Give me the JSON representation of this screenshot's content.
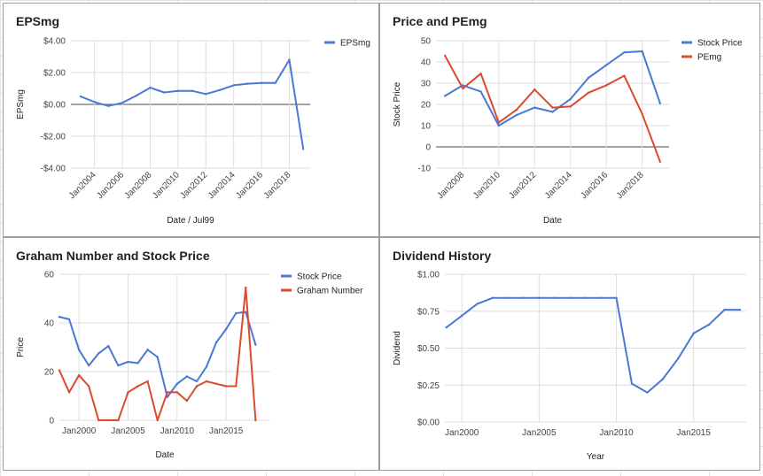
{
  "chart_data": [
    {
      "type": "line",
      "title": "EPSmg",
      "xlabel": "Date / Jul99",
      "ylabel": "EPSmg",
      "x_kind": "year",
      "xlim": [
        2002.3,
        2019.5
      ],
      "ylim": [
        -4,
        4
      ],
      "y_ticks": [
        -4,
        -2,
        0,
        2,
        4
      ],
      "y_tick_labels": [
        "-$4.00",
        "-$2.00",
        "$0.00",
        "$2.00",
        "$4.00"
      ],
      "x_ticks": [
        2004,
        2006,
        2008,
        2010,
        2012,
        2014,
        2016,
        2018
      ],
      "x_tick_labels": [
        "Jan2004",
        "Jan2006",
        "Jan2008",
        "Jan2010",
        "Jan2012",
        "Jan2014",
        "Jan2016",
        "Jan2018"
      ],
      "x_labels_rotated": true,
      "zero_line": true,
      "legend_position": "right",
      "grid": true,
      "series": [
        {
          "name": "EPSmg",
          "color": "#4a78d6",
          "x": [
            2003,
            2004,
            2005,
            2006,
            2007,
            2008,
            2009,
            2010,
            2011,
            2012,
            2013,
            2014,
            2015,
            2016,
            2017,
            2018,
            2019
          ],
          "y": [
            0.5,
            0.15,
            -0.1,
            0.1,
            0.55,
            1.05,
            0.75,
            0.85,
            0.85,
            0.65,
            0.9,
            1.2,
            1.3,
            1.35,
            1.35,
            2.8,
            -2.8
          ]
        }
      ]
    },
    {
      "type": "line",
      "title": "Price and PEmg",
      "xlabel": "Date",
      "ylabel": "Stock Price",
      "x_kind": "year",
      "xlim": [
        2006.5,
        2019.5
      ],
      "ylim": [
        -10,
        50
      ],
      "y_ticks": [
        -10,
        0,
        10,
        20,
        30,
        40,
        50
      ],
      "y_tick_labels": [
        "-10",
        "0",
        "10",
        "20",
        "30",
        "40",
        "50"
      ],
      "x_ticks": [
        2008,
        2010,
        2012,
        2014,
        2016,
        2018
      ],
      "x_tick_labels": [
        "Jan2008",
        "Jan2010",
        "Jan2012",
        "Jan2014",
        "Jan2016",
        "Jan2018"
      ],
      "x_labels_rotated": true,
      "zero_line": true,
      "legend_position": "right",
      "grid": true,
      "series": [
        {
          "name": "Stock Price",
          "color": "#4a78d6",
          "x": [
            2007,
            2008,
            2009,
            2010,
            2011,
            2012,
            2013,
            2014,
            2015,
            2016,
            2017,
            2018,
            2019
          ],
          "y": [
            24,
            29,
            26,
            10,
            15,
            18.5,
            16.5,
            22.5,
            32.5,
            38.5,
            44.5,
            45,
            20.5
          ]
        },
        {
          "name": "PEmg",
          "color": "#dc4a2c",
          "x": [
            2007,
            2008,
            2009,
            2010,
            2011,
            2012,
            2013,
            2014,
            2015,
            2016,
            2017,
            2018,
            2019
          ],
          "y": [
            43,
            27.5,
            34.5,
            11.5,
            17.5,
            27,
            18.5,
            19,
            25.5,
            29,
            33.5,
            15.5,
            -7
          ]
        }
      ]
    },
    {
      "type": "line",
      "title": "Graham Number and Stock Price",
      "xlabel": "Date",
      "ylabel": "Price",
      "x_kind": "year",
      "xlim": [
        1998,
        2019.5
      ],
      "ylim": [
        0,
        60
      ],
      "y_ticks": [
        0,
        20,
        40,
        60
      ],
      "y_tick_labels": [
        "0",
        "20",
        "40",
        "60"
      ],
      "x_ticks": [
        2000,
        2005,
        2010,
        2015
      ],
      "x_tick_labels": [
        "Jan2000",
        "Jan2005",
        "Jan2010",
        "Jan2015"
      ],
      "x_labels_rotated": false,
      "zero_line": false,
      "legend_position": "right",
      "grid": true,
      "series": [
        {
          "name": "Stock Price",
          "color": "#4a78d6",
          "x": [
            1998,
            1999,
            2000,
            2001,
            2002,
            2003,
            2004,
            2005,
            2006,
            2007,
            2008,
            2009,
            2010,
            2011,
            2012,
            2013,
            2014,
            2015,
            2016,
            2017,
            2018
          ],
          "y": [
            42.5,
            41.5,
            29,
            22.5,
            27.5,
            30.5,
            22.5,
            24,
            23.5,
            29,
            26,
            9.5,
            15,
            18,
            16,
            22,
            32,
            37.5,
            44,
            44.5,
            31
          ]
        },
        {
          "name": "Graham Number",
          "color": "#dc4a2c",
          "x": [
            1998,
            1999,
            2000,
            2001,
            2002,
            2003,
            2004,
            2005,
            2006,
            2007,
            2008,
            2009,
            2010,
            2011,
            2012,
            2013,
            2014,
            2015,
            2016,
            2017,
            2018
          ],
          "y": [
            20.5,
            11.5,
            18.5,
            14,
            0,
            0,
            0,
            11.5,
            14,
            16,
            0,
            11.5,
            11.5,
            8,
            14,
            16,
            15,
            14,
            14,
            54.5,
            0
          ]
        }
      ]
    },
    {
      "type": "line",
      "title": "Dividend History",
      "xlabel": "Year",
      "ylabel": "Dividend",
      "x_kind": "year",
      "xlim": [
        1998.9,
        2018.4
      ],
      "ylim": [
        0,
        1
      ],
      "y_ticks": [
        0,
        0.25,
        0.5,
        0.75,
        1
      ],
      "y_tick_labels": [
        "$0.00",
        "$0.25",
        "$0.50",
        "$0.75",
        "$1.00"
      ],
      "x_ticks": [
        2000,
        2005,
        2010,
        2015
      ],
      "x_tick_labels": [
        "Jan2000",
        "Jan2005",
        "Jan2010",
        "Jan2015"
      ],
      "x_labels_rotated": false,
      "zero_line": false,
      "legend_position": "none",
      "grid": true,
      "series": [
        {
          "name": "",
          "color": "#4a78d6",
          "x": [
            1999,
            2000,
            2001,
            2002,
            2003,
            2004,
            2005,
            2006,
            2007,
            2008,
            2009,
            2010,
            2011,
            2012,
            2013,
            2014,
            2015,
            2016,
            2017,
            2018
          ],
          "y": [
            0.64,
            0.72,
            0.8,
            0.84,
            0.84,
            0.84,
            0.84,
            0.84,
            0.84,
            0.84,
            0.84,
            0.84,
            0.26,
            0.2,
            0.29,
            0.43,
            0.6,
            0.66,
            0.76,
            0.76
          ]
        }
      ]
    }
  ]
}
